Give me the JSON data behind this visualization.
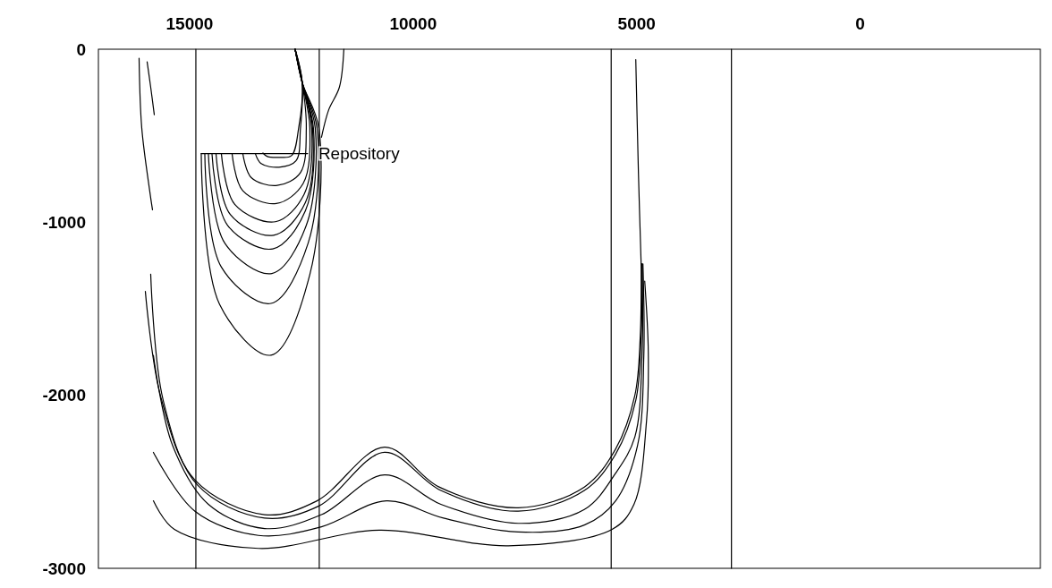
{
  "chart_data": {
    "type": "line",
    "xlim": [
      17040,
      -4030
    ],
    "ylim": [
      -3000,
      0
    ],
    "xticks": [
      15000,
      10000,
      5000,
      0
    ],
    "yticks": [
      0,
      -1000,
      -2000,
      -3000
    ],
    "grid": false,
    "marker": "none",
    "line_style": "solid",
    "annotations": [
      {
        "text": "Repository",
        "x": 12400,
        "y": -603
      }
    ],
    "series": [
      {
        "color": "#000000",
        "x": [
          14860,
          14860
        ],
        "values": [
          0,
          -3000
        ]
      },
      {
        "color": "#000000",
        "x": [
          12100,
          12100
        ],
        "values": [
          0,
          -3000
        ]
      },
      {
        "color": "#000000",
        "x": [
          5570,
          5570
        ],
        "values": [
          0,
          -3000
        ]
      },
      {
        "color": "#000000",
        "x": [
          2880,
          2880
        ],
        "values": [
          0,
          -3000
        ]
      },
      {
        "color": "#000000",
        "x": [
          14740,
          12360
        ],
        "values": [
          -603,
          -603
        ]
      },
      {
        "color": "#000000",
        "x": [
          13360,
          13260,
          13000,
          12720,
          12560,
          12480,
          12640
        ],
        "values": [
          -600,
          -620,
          -625,
          -615,
          -455,
          -194,
          0
        ]
      },
      {
        "color": "#000000",
        "x": [
          13530,
          13400,
          13000,
          12620,
          12520,
          12480,
          12640
        ],
        "values": [
          -603,
          -661,
          -682,
          -645,
          -456,
          -194,
          0
        ]
      },
      {
        "color": "#000000",
        "x": [
          13810,
          13620,
          13040,
          12520,
          12390,
          12480,
          12640
        ],
        "values": [
          -603,
          -742,
          -787,
          -713,
          -456,
          -194,
          0
        ]
      },
      {
        "color": "#000000",
        "x": [
          14050,
          13810,
          13060,
          12460,
          12310,
          12480,
          12640
        ],
        "values": [
          -603,
          -818,
          -892,
          -776,
          -456,
          -194,
          0
        ]
      },
      {
        "color": "#000000",
        "x": [
          14290,
          13990,
          13080,
          12440,
          12270,
          12480,
          12640
        ],
        "values": [
          -603,
          -897,
          -997,
          -839,
          -456,
          -194,
          0
        ]
      },
      {
        "color": "#000000",
        "x": [
          14410,
          14090,
          13120,
          12410,
          12250,
          12480,
          12640
        ],
        "values": [
          -603,
          -955,
          -1075,
          -886,
          -456,
          -194,
          0
        ]
      },
      {
        "color": "#000000",
        "x": [
          14500,
          14150,
          13140,
          12410,
          12230,
          12480,
          12640
        ],
        "values": [
          -603,
          -1018,
          -1154,
          -934,
          -456,
          -194,
          0
        ]
      },
      {
        "color": "#000000",
        "x": [
          14580,
          14210,
          13160,
          12390,
          12190,
          12480,
          12640
        ],
        "values": [
          -603,
          -1122,
          -1296,
          -1018,
          -456,
          -194,
          0
        ]
      },
      {
        "color": "#000000",
        "x": [
          14660,
          14290,
          13180,
          12350,
          12150,
          12480,
          12640
        ],
        "values": [
          -603,
          -1259,
          -1469,
          -1122,
          -456,
          -194,
          0
        ]
      },
      {
        "color": "#000000",
        "x": [
          14740,
          14330,
          13180,
          12310,
          12110,
          12480,
          12640
        ],
        "values": [
          -603,
          -1474,
          -1768,
          -1301,
          -456,
          -194,
          0
        ]
      },
      {
        "color": "#000000",
        "x": [
          11550,
          11650,
          11890,
          12050
        ],
        "values": [
          0,
          -220,
          -351,
          -509
        ]
      },
      {
        "color": "#000000",
        "x": [
          16130,
          16070,
          15890,
          15830
        ],
        "values": [
          -52,
          -456,
          -823,
          -928
        ]
      },
      {
        "color": "#000000",
        "x": [
          15950,
          15870,
          15790
        ],
        "values": [
          -73,
          -220,
          -378
        ]
      },
      {
        "color": "#000000",
        "x": [
          15990,
          15650,
          14880,
          13320,
          12150,
          10640,
          9420,
          7650,
          6170,
          5470,
          5040,
          4920,
          4900
        ],
        "values": [
          -1400,
          -2004,
          -2490,
          -2690,
          -2610,
          -2300,
          -2530,
          -2650,
          -2530,
          -2310,
          -2000,
          -1660,
          -1240
        ]
      },
      {
        "color": "#000000",
        "x": [
          15870,
          15590,
          14820,
          13320,
          12110,
          10640,
          9380,
          7650,
          6170,
          5470,
          5020,
          4900,
          4880
        ],
        "values": [
          -1300,
          -2030,
          -2520,
          -2710,
          -2640,
          -2330,
          -2550,
          -2670,
          -2550,
          -2340,
          -2030,
          -1660,
          -1240
        ]
      },
      {
        "color": "#000000",
        "x": [
          15810,
          15380,
          14580,
          13320,
          12050,
          10640,
          9380,
          7650,
          6170,
          5470,
          5040,
          4880,
          4880
        ],
        "values": [
          -1770,
          -2290,
          -2630,
          -2770,
          -2690,
          -2460,
          -2630,
          -2740,
          -2660,
          -2450,
          -2240,
          -1770,
          -1240
        ]
      },
      {
        "color": "#000000",
        "x": [
          15810,
          14880,
          13460,
          12050,
          10600,
          9320,
          7650,
          6170,
          5470,
          4980,
          4840,
          4860
        ],
        "values": [
          -2330,
          -2670,
          -2810,
          -2760,
          -2610,
          -2710,
          -2790,
          -2750,
          -2610,
          -2290,
          -1770,
          -1240
        ]
      },
      {
        "color": "#000000",
        "x": [
          15810,
          15340,
          13460,
          10760,
          7870,
          5550,
          5060,
          4780,
          4740,
          4820
        ],
        "values": [
          -2610,
          -2775,
          -2885,
          -2780,
          -2870,
          -2775,
          -2630,
          -2150,
          -1750,
          -1340
        ]
      },
      {
        "color": "#000000",
        "x": [
          5020,
          4960,
          4900
        ],
        "values": [
          -60,
          -720,
          -1240
        ]
      }
    ]
  }
}
